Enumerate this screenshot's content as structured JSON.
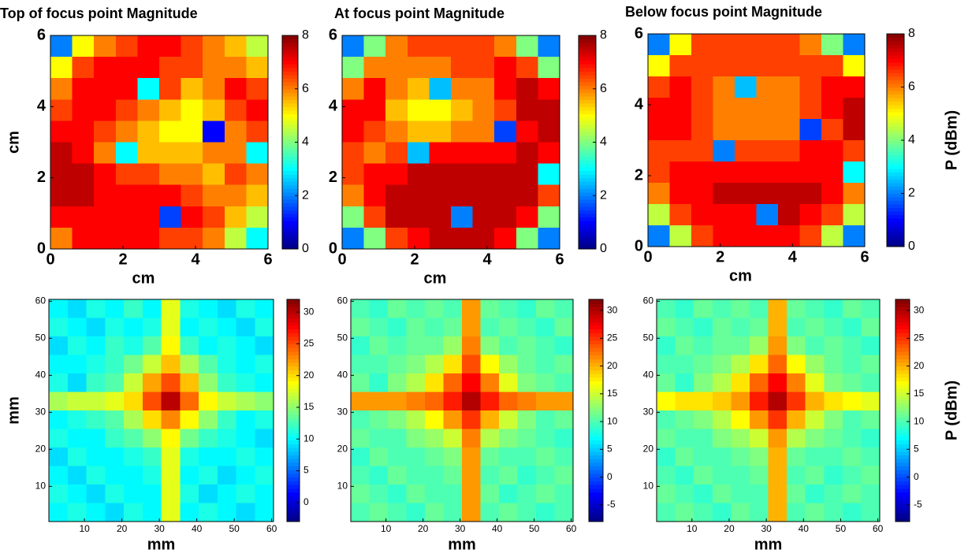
{
  "chart_data": [
    {
      "type": "heatmap",
      "title": "Top of focus point Magnitude",
      "xlabel": "cm",
      "ylabel": "cm",
      "xlim": [
        0,
        6
      ],
      "ylim": [
        0,
        6
      ],
      "xticks": [
        0,
        2,
        4,
        6
      ],
      "yticks": [
        0,
        2,
        4,
        6
      ],
      "clim": [
        0,
        8
      ],
      "cticks": [
        0,
        2,
        4,
        6,
        8
      ],
      "z": [
        [
          2,
          5,
          6,
          6.5,
          7,
          7,
          6.5,
          6,
          5.5,
          4.5
        ],
        [
          5,
          6.5,
          7,
          7,
          7,
          6.5,
          6.5,
          6,
          6,
          5.5
        ],
        [
          6,
          7,
          7,
          7,
          3,
          6.5,
          5.5,
          6,
          7,
          6.5
        ],
        [
          6.5,
          7,
          7,
          6.5,
          6,
          5.5,
          5,
          5.5,
          6.5,
          7
        ],
        [
          7,
          7,
          6.5,
          6,
          5.5,
          5,
          5,
          1,
          6,
          6.5
        ],
        [
          7.5,
          7,
          6,
          3,
          5.5,
          5.5,
          5.5,
          6,
          6,
          3
        ],
        [
          7.5,
          7.5,
          7,
          6.5,
          6.5,
          6,
          6,
          5.5,
          6.5,
          6
        ],
        [
          7.5,
          7.5,
          7,
          7,
          7,
          7,
          6.5,
          6,
          6,
          5.5
        ],
        [
          7,
          7,
          7,
          7,
          7,
          1.5,
          7,
          6.5,
          5.5,
          4.5
        ],
        [
          6,
          7,
          7,
          7,
          7,
          6.5,
          6.5,
          6,
          4.5,
          3
        ]
      ]
    },
    {
      "type": "heatmap",
      "title": "At focus point Magnitude",
      "xlabel": "cm",
      "xlim": [
        0,
        6
      ],
      "ylim": [
        0,
        6
      ],
      "xticks": [
        0,
        2,
        4,
        6
      ],
      "yticks": [
        0,
        2,
        4,
        6
      ],
      "clim": [
        0,
        8
      ],
      "cticks": [
        0,
        2,
        4,
        6,
        8
      ],
      "z": [
        [
          2,
          4,
          6,
          6.5,
          6.5,
          6.5,
          6.5,
          6,
          4,
          2
        ],
        [
          4,
          6,
          6,
          6,
          6,
          6.5,
          6.5,
          7,
          6.5,
          4
        ],
        [
          6,
          7,
          6,
          5.5,
          2.5,
          6,
          6,
          7,
          7.5,
          7
        ],
        [
          7,
          7,
          5.5,
          5,
          5,
          5.5,
          6,
          6.5,
          7.5,
          7.5
        ],
        [
          7,
          6.5,
          6,
          5.5,
          5.5,
          6,
          6,
          1.5,
          7,
          7.5
        ],
        [
          6.5,
          6,
          6.5,
          2.5,
          7,
          7,
          7,
          7,
          7.5,
          7
        ],
        [
          6.5,
          7,
          7,
          7.5,
          7.5,
          7.5,
          7.5,
          7.5,
          7.5,
          3
        ],
        [
          6,
          7,
          7.5,
          7.5,
          7.5,
          7.5,
          7.5,
          7.5,
          7.5,
          6.5
        ],
        [
          4,
          6.5,
          7.5,
          7.5,
          7.5,
          2,
          7.5,
          7.5,
          7,
          4
        ],
        [
          2,
          4,
          6.5,
          7,
          7.5,
          7.5,
          7.5,
          7,
          4,
          2
        ]
      ]
    },
    {
      "type": "heatmap",
      "title": "Below focus point Magnitude",
      "xlabel": "cm",
      "clabel": "P (dBm)",
      "xlim": [
        0,
        6
      ],
      "ylim": [
        0,
        6
      ],
      "xticks": [
        0,
        2,
        4,
        6
      ],
      "yticks": [
        0,
        2,
        4,
        6
      ],
      "clim": [
        0,
        8
      ],
      "cticks": [
        0,
        2,
        4,
        6,
        8
      ],
      "z": [
        [
          2,
          5,
          6.5,
          6.5,
          6.5,
          6.5,
          6.5,
          6,
          4,
          2
        ],
        [
          5,
          6.5,
          6.5,
          6.5,
          6.5,
          6.5,
          6.5,
          6.5,
          6.5,
          5
        ],
        [
          6.5,
          7,
          6.5,
          6,
          2.5,
          6,
          6,
          6.5,
          7,
          7
        ],
        [
          7,
          7,
          6.5,
          6,
          6,
          6,
          6,
          6.5,
          7,
          7.5
        ],
        [
          7,
          7,
          6.5,
          6,
          6,
          6,
          6,
          1.5,
          6.5,
          7.5
        ],
        [
          6.5,
          6.5,
          6.5,
          2,
          6.5,
          6.5,
          6.5,
          7,
          7,
          6.5
        ],
        [
          6.5,
          7,
          7,
          7,
          7,
          7,
          7,
          7,
          7,
          3
        ],
        [
          6,
          7,
          7,
          7.5,
          7.5,
          7.5,
          7.5,
          7.5,
          7,
          6
        ],
        [
          4.5,
          6.5,
          7,
          7,
          7,
          2,
          7.5,
          7,
          6.5,
          4.5
        ],
        [
          2,
          4.5,
          6.5,
          7,
          7,
          7,
          7,
          6.5,
          4.5,
          2
        ]
      ]
    },
    {
      "type": "heatmap",
      "xlabel": "mm",
      "ylabel": "mm",
      "xlim": [
        0.5,
        60.5
      ],
      "ylim": [
        0.5,
        60.5
      ],
      "xticks": [
        10,
        20,
        30,
        40,
        50,
        60
      ],
      "yticks": [
        10,
        20,
        30,
        40,
        50,
        60
      ],
      "clim": [
        -3,
        32
      ],
      "cticks": [
        0,
        5,
        10,
        15,
        20,
        25,
        30
      ],
      "z": [
        [
          10,
          9,
          11,
          10,
          12,
          10,
          18,
          11,
          10,
          9,
          11,
          10
        ],
        [
          11,
          10,
          9,
          11,
          10,
          11,
          18,
          10,
          11,
          10,
          9,
          11
        ],
        [
          9,
          11,
          10,
          12,
          11,
          13,
          19,
          12,
          10,
          11,
          10,
          9
        ],
        [
          10,
          10,
          11,
          12,
          14,
          17,
          21,
          16,
          13,
          11,
          10,
          11
        ],
        [
          11,
          9,
          12,
          13,
          17,
          22,
          25,
          21,
          15,
          12,
          11,
          10
        ],
        [
          16,
          17,
          17,
          18,
          20,
          25,
          30,
          24,
          19,
          17,
          16,
          15
        ],
        [
          10,
          11,
          12,
          13,
          16,
          20,
          23,
          19,
          15,
          12,
          10,
          11
        ],
        [
          11,
          10,
          10,
          12,
          13,
          15,
          19,
          14,
          12,
          11,
          10,
          9
        ],
        [
          9,
          11,
          10,
          10,
          11,
          12,
          18,
          11,
          10,
          10,
          11,
          10
        ],
        [
          10,
          9,
          11,
          10,
          10,
          11,
          18,
          10,
          11,
          9,
          10,
          11
        ],
        [
          11,
          10,
          9,
          11,
          10,
          10,
          18,
          11,
          9,
          10,
          11,
          10
        ],
        [
          10,
          11,
          10,
          9,
          11,
          10,
          18,
          10,
          11,
          10,
          9,
          10
        ]
      ]
    },
    {
      "type": "heatmap",
      "xlabel": "mm",
      "xlim": [
        0.5,
        60.5
      ],
      "ylim": [
        0.5,
        60.5
      ],
      "xticks": [
        10,
        20,
        30,
        40,
        50,
        60
      ],
      "yticks": [
        10,
        20,
        30,
        40,
        50,
        60
      ],
      "clim": [
        -8,
        32
      ],
      "cticks": [
        -5,
        0,
        5,
        10,
        15,
        20,
        25,
        30
      ],
      "z": [
        [
          10,
          9,
          11,
          10,
          11,
          10,
          21,
          11,
          10,
          9,
          11,
          10
        ],
        [
          11,
          10,
          9,
          11,
          10,
          11,
          21,
          10,
          11,
          10,
          9,
          11
        ],
        [
          9,
          11,
          10,
          11,
          11,
          13,
          22,
          12,
          10,
          11,
          10,
          9
        ],
        [
          10,
          10,
          11,
          12,
          14,
          18,
          24,
          17,
          13,
          11,
          10,
          11
        ],
        [
          11,
          9,
          12,
          14,
          18,
          23,
          27,
          22,
          16,
          12,
          11,
          10
        ],
        [
          21,
          21,
          21,
          22,
          23,
          26,
          30,
          26,
          23,
          22,
          21,
          21
        ],
        [
          10,
          11,
          12,
          14,
          17,
          21,
          25,
          20,
          15,
          12,
          10,
          11
        ],
        [
          11,
          10,
          10,
          12,
          13,
          15,
          22,
          14,
          12,
          11,
          10,
          9
        ],
        [
          9,
          11,
          10,
          10,
          11,
          12,
          21,
          11,
          10,
          10,
          11,
          10
        ],
        [
          10,
          9,
          11,
          10,
          10,
          11,
          21,
          10,
          11,
          9,
          10,
          11
        ],
        [
          11,
          10,
          9,
          11,
          10,
          10,
          21,
          11,
          9,
          10,
          11,
          10
        ],
        [
          10,
          11,
          10,
          9,
          11,
          10,
          21,
          10,
          11,
          10,
          9,
          10
        ]
      ]
    },
    {
      "type": "heatmap",
      "xlabel": "mm",
      "clabel": "P (dBm)",
      "xlim": [
        0.5,
        60.5
      ],
      "ylim": [
        0.5,
        60.5
      ],
      "xticks": [
        10,
        20,
        30,
        40,
        50,
        60
      ],
      "yticks": [
        10,
        20,
        30,
        40,
        50,
        60
      ],
      "clim": [
        -8,
        32
      ],
      "cticks": [
        -5,
        0,
        5,
        10,
        15,
        20,
        25,
        30
      ],
      "z": [
        [
          10,
          9,
          11,
          10,
          11,
          10,
          20,
          11,
          10,
          9,
          11,
          10
        ],
        [
          11,
          10,
          9,
          11,
          10,
          11,
          20,
          10,
          11,
          10,
          9,
          11
        ],
        [
          9,
          11,
          10,
          11,
          11,
          13,
          21,
          12,
          10,
          11,
          10,
          9
        ],
        [
          10,
          10,
          11,
          12,
          14,
          18,
          23,
          17,
          13,
          11,
          10,
          11
        ],
        [
          11,
          9,
          12,
          14,
          18,
          23,
          27,
          22,
          16,
          12,
          11,
          10
        ],
        [
          17,
          18,
          18,
          19,
          21,
          26,
          30,
          25,
          20,
          18,
          17,
          16
        ],
        [
          10,
          11,
          12,
          14,
          17,
          21,
          25,
          20,
          15,
          12,
          10,
          11
        ],
        [
          11,
          10,
          10,
          12,
          13,
          15,
          21,
          14,
          12,
          11,
          10,
          9
        ],
        [
          9,
          11,
          10,
          10,
          11,
          12,
          20,
          11,
          10,
          10,
          11,
          10
        ],
        [
          10,
          9,
          11,
          10,
          10,
          11,
          20,
          10,
          11,
          9,
          10,
          11
        ],
        [
          11,
          10,
          9,
          11,
          10,
          10,
          20,
          11,
          9,
          10,
          11,
          10
        ],
        [
          10,
          11,
          10,
          9,
          11,
          10,
          20,
          10,
          11,
          10,
          9,
          10
        ]
      ]
    }
  ]
}
